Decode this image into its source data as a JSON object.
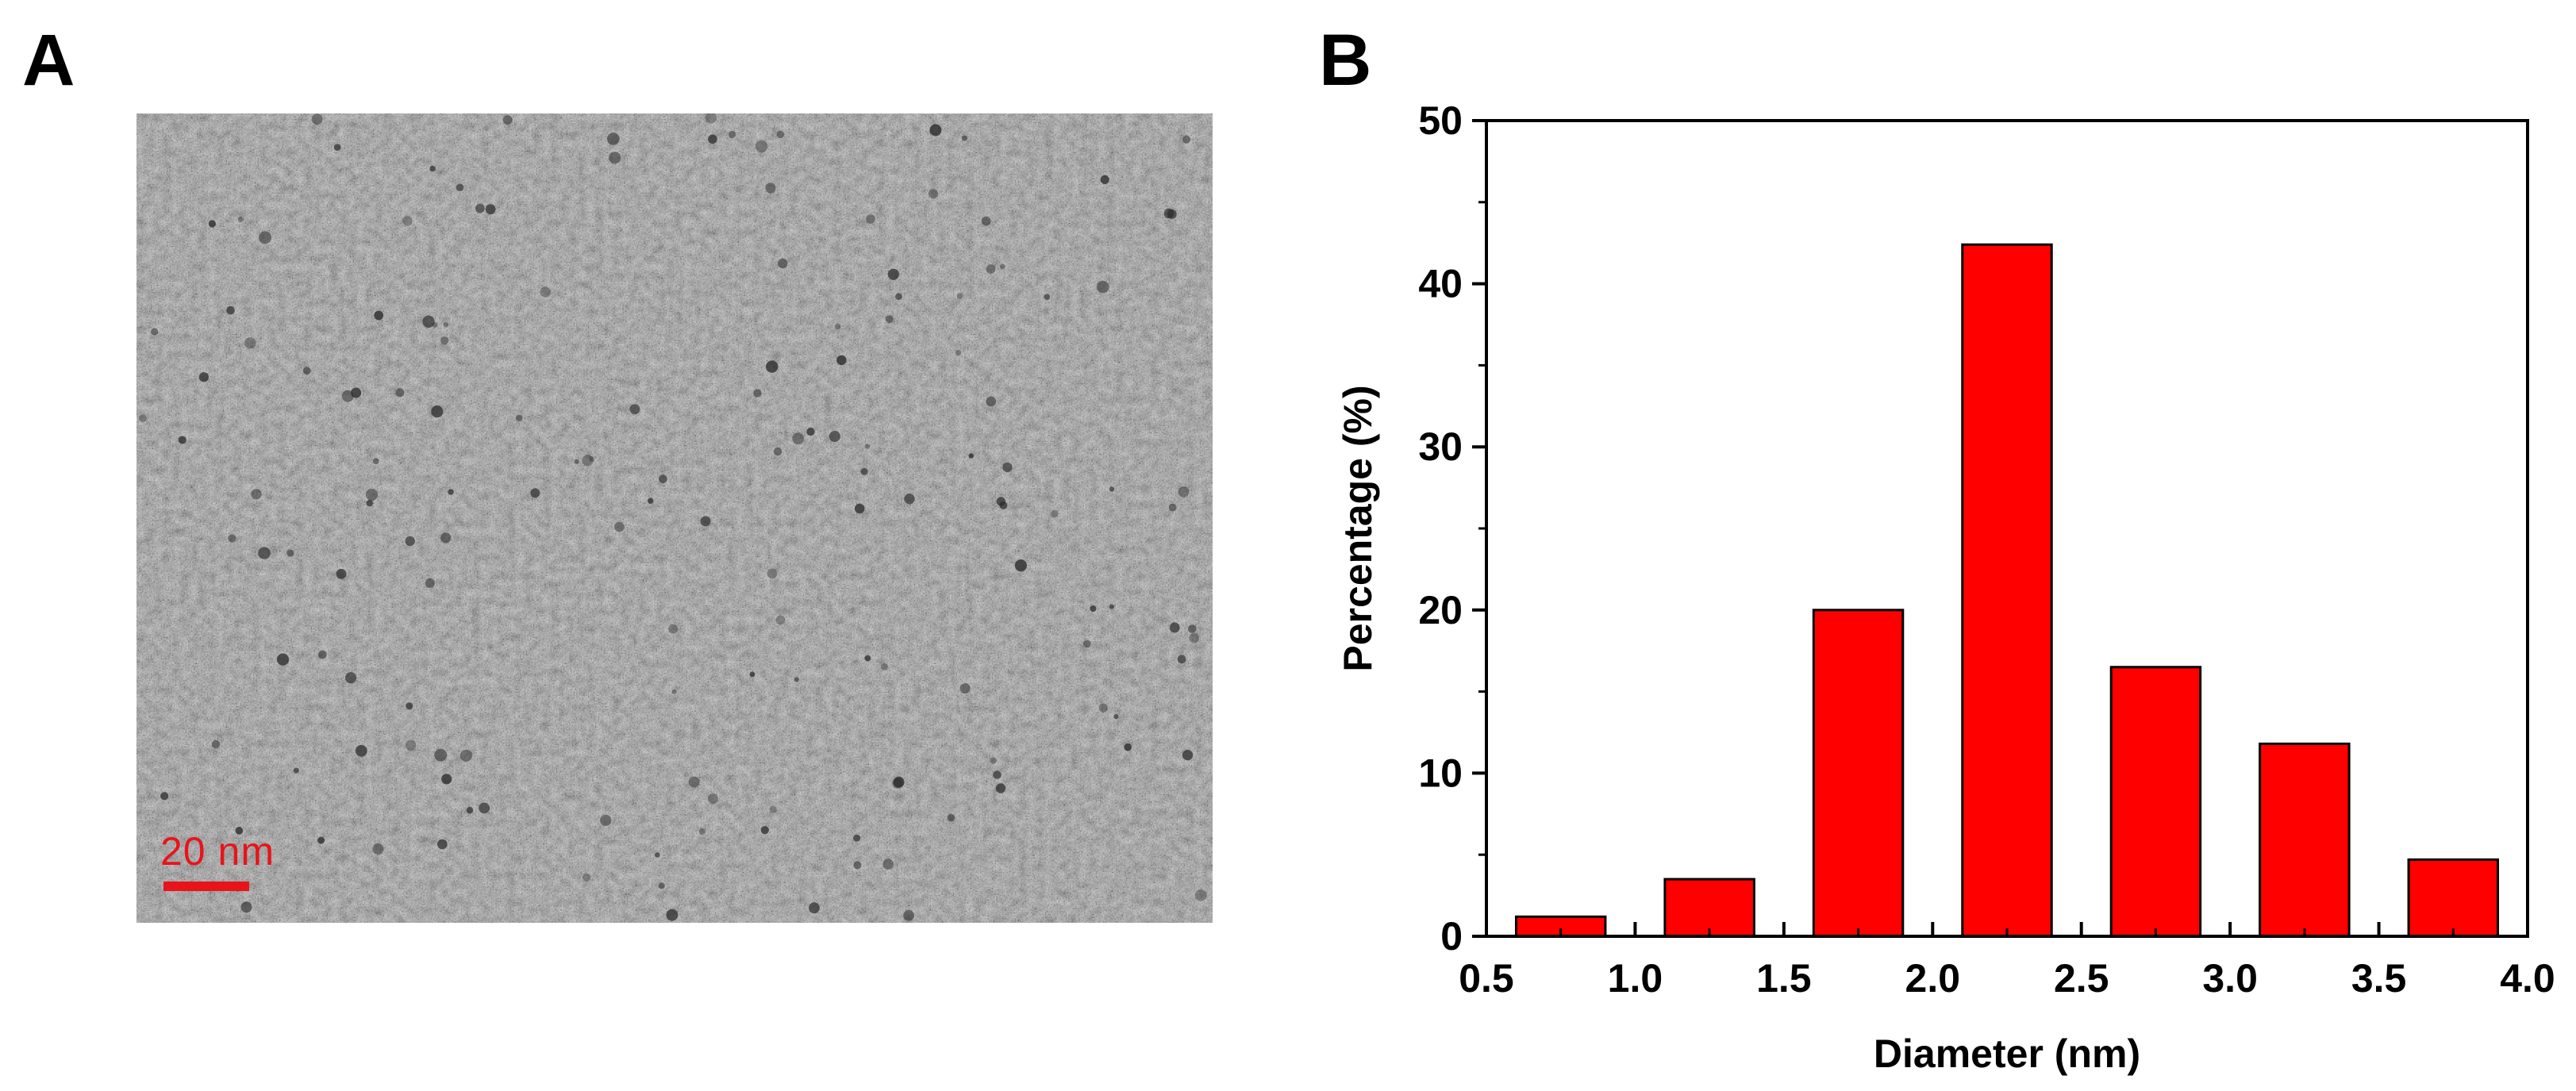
{
  "panels": {
    "a_label": "A",
    "b_label": "B"
  },
  "micrograph": {
    "scale_bar_text": "20 nm",
    "scale_bar_color": "#e8141a"
  },
  "chart_data": {
    "type": "bar",
    "title": "",
    "xlabel": "Diameter (nm)",
    "ylabel": "Percentage (%)",
    "xlim": [
      0.5,
      4.0
    ],
    "ylim": [
      0,
      50
    ],
    "x_ticks": [
      0.5,
      1.0,
      1.5,
      2.0,
      2.5,
      3.0,
      3.5,
      4.0
    ],
    "x_tick_labels": [
      "0.5",
      "1.0",
      "1.5",
      "2.0",
      "2.5",
      "3.0",
      "3.5",
      "4.0"
    ],
    "y_ticks": [
      0,
      10,
      20,
      30,
      40,
      50
    ],
    "y_tick_labels": [
      "0",
      "10",
      "20",
      "30",
      "40",
      "50"
    ],
    "bar_color": "#ff0000",
    "bar_edge_color": "#000000",
    "grid": false,
    "legend": "none",
    "bars": [
      {
        "x_start": 0.5,
        "x_end": 1.0,
        "value": 1.2
      },
      {
        "x_start": 1.0,
        "x_end": 1.5,
        "value": 3.5
      },
      {
        "x_start": 1.5,
        "x_end": 2.0,
        "value": 20.0
      },
      {
        "x_start": 2.0,
        "x_end": 2.5,
        "value": 42.4
      },
      {
        "x_start": 2.5,
        "x_end": 3.0,
        "value": 16.5
      },
      {
        "x_start": 3.0,
        "x_end": 3.5,
        "value": 11.8
      },
      {
        "x_start": 3.5,
        "x_end": 4.0,
        "value": 4.7
      }
    ]
  }
}
